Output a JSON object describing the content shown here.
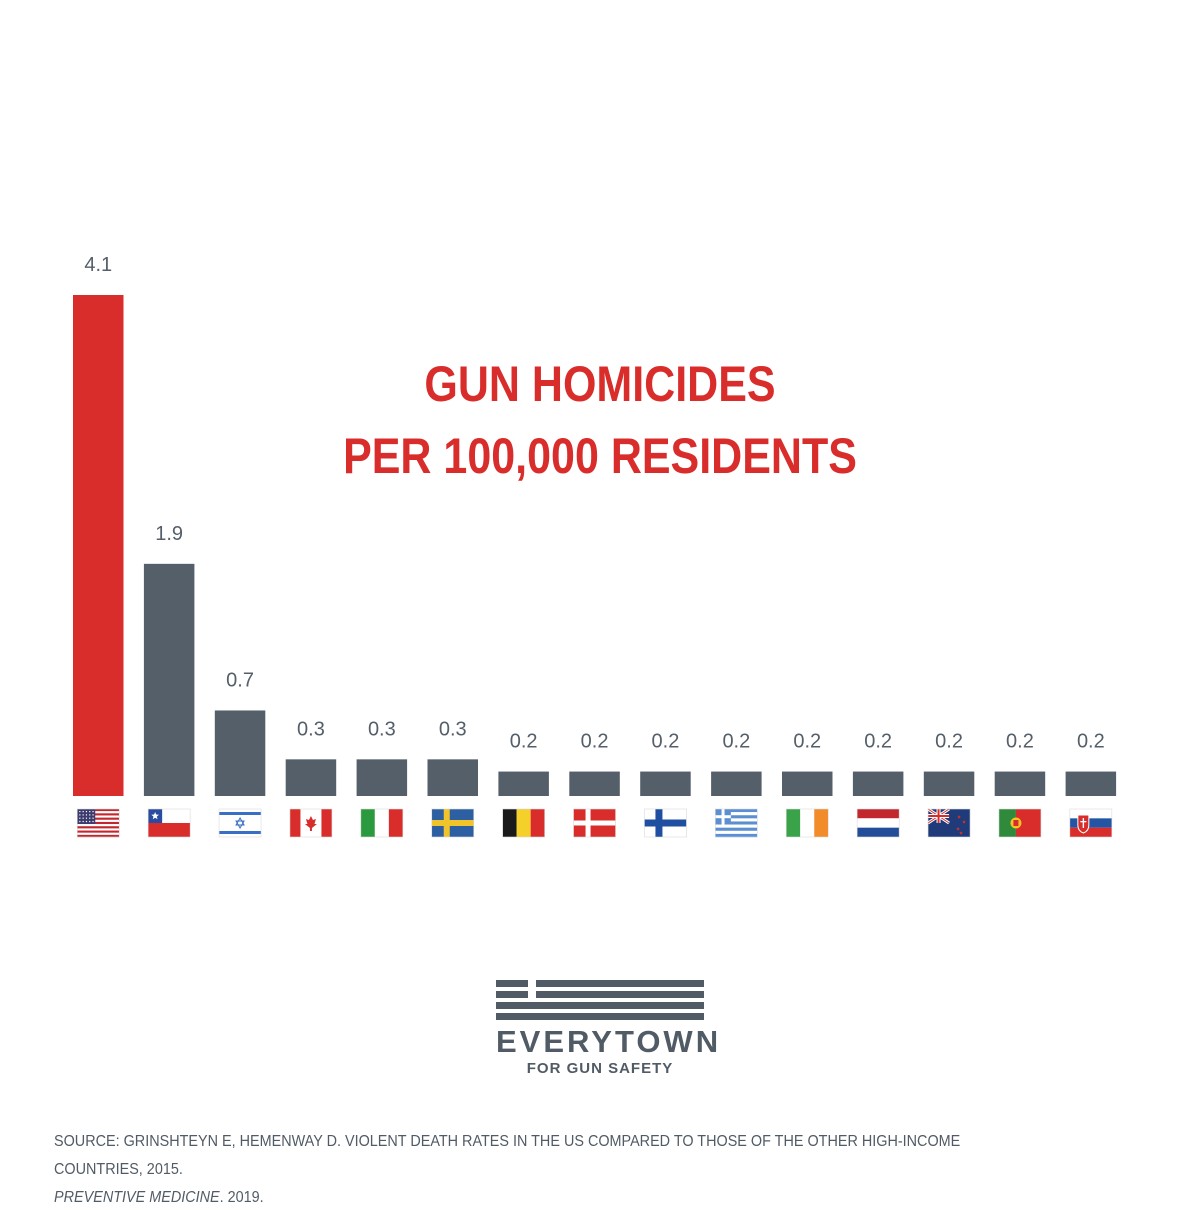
{
  "chart_data": {
    "type": "bar",
    "title": [
      "GUN HOMICIDES",
      "PER 100,000 RESIDENTS"
    ],
    "categories": [
      "United States",
      "Chile",
      "Israel",
      "Canada",
      "Italy",
      "Sweden",
      "Belgium",
      "Denmark",
      "Finland",
      "Greece",
      "Ireland",
      "Netherlands",
      "New Zealand",
      "Portugal",
      "Slovakia"
    ],
    "flags": [
      "us-flag-icon",
      "chile-flag-icon",
      "israel-flag-icon",
      "canada-flag-icon",
      "italy-flag-icon",
      "sweden-flag-icon",
      "belgium-flag-icon",
      "denmark-flag-icon",
      "finland-flag-icon",
      "greece-flag-icon",
      "ireland-flag-icon",
      "netherlands-flag-icon",
      "new-zealand-flag-icon",
      "portugal-flag-icon",
      "slovakia-flag-icon"
    ],
    "values": [
      4.1,
      1.9,
      0.7,
      0.3,
      0.3,
      0.3,
      0.2,
      0.2,
      0.2,
      0.2,
      0.2,
      0.2,
      0.2,
      0.2,
      0.2
    ],
    "labels": [
      "4.1",
      "1.9",
      "0.7",
      "0.3",
      "0.3",
      "0.3",
      "0.2",
      "0.2",
      "0.2",
      "0.2",
      "0.2",
      "0.2",
      "0.2",
      "0.2",
      "0.2"
    ],
    "highlight_index": 0,
    "colors": {
      "highlight": "#d82d2b",
      "default": "#555f69",
      "label": "#555f69"
    },
    "xlabel": "",
    "ylabel": "",
    "grid": false
  },
  "logo": {
    "name": "EVERYTOWN",
    "tagline": "FOR GUN SAFETY"
  },
  "source": {
    "line1": "SOURCE: GRINSHTEYN E, HEMENWAY D. VIOLENT DEATH RATES IN THE US COMPARED TO THOSE OF THE OTHER HIGH-INCOME COUNTRIES, 2015.",
    "journal": "PREVENTIVE MEDICINE",
    "year": ". 2019."
  }
}
